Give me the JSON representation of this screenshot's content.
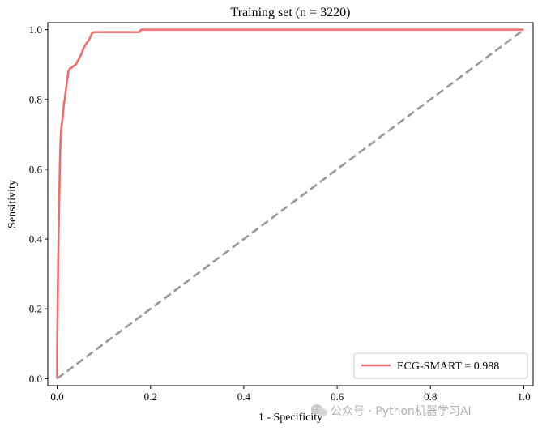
{
  "chart_data": {
    "type": "line",
    "title": "Training set (n = 3220)",
    "xlabel": "1 - Specificity",
    "ylabel": "Sensitivity",
    "xlim": [
      -0.02,
      1.02
    ],
    "ylim": [
      -0.02,
      1.02
    ],
    "xticks": [
      "0.0",
      "0.2",
      "0.4",
      "0.6",
      "0.8",
      "1.0"
    ],
    "xtick_values": [
      0.0,
      0.2,
      0.4,
      0.6,
      0.8,
      1.0
    ],
    "yticks": [
      "0.0",
      "0.2",
      "0.4",
      "0.6",
      "0.8",
      "1.0"
    ],
    "ytick_values": [
      0.0,
      0.2,
      0.4,
      0.6,
      0.8,
      1.0
    ],
    "grid": false,
    "legend_position": "lower-right",
    "series": [
      {
        "name": "ECG-SMART = 0.988",
        "color": "#f56b6b",
        "style": "solid",
        "x": [
          0.0,
          0.0,
          0.001,
          0.002,
          0.003,
          0.004,
          0.005,
          0.006,
          0.007,
          0.008,
          0.009,
          0.01,
          0.012,
          0.014,
          0.016,
          0.018,
          0.02,
          0.022,
          0.024,
          0.026,
          0.028,
          0.03,
          0.033,
          0.036,
          0.04,
          0.044,
          0.048,
          0.052,
          0.056,
          0.06,
          0.065,
          0.07,
          0.075,
          0.08,
          0.09,
          0.11,
          0.14,
          0.176,
          0.18,
          0.3,
          0.5,
          0.7,
          0.9,
          1.0
        ],
        "y": [
          0.0,
          0.08,
          0.2,
          0.32,
          0.4,
          0.48,
          0.55,
          0.62,
          0.67,
          0.7,
          0.72,
          0.73,
          0.75,
          0.78,
          0.8,
          0.82,
          0.84,
          0.86,
          0.88,
          0.885,
          0.89,
          0.89,
          0.893,
          0.897,
          0.9,
          0.91,
          0.92,
          0.93,
          0.945,
          0.955,
          0.965,
          0.975,
          0.99,
          0.993,
          0.993,
          0.993,
          0.993,
          0.993,
          1.0,
          1.0,
          1.0,
          1.0,
          1.0,
          1.0
        ]
      },
      {
        "name": "",
        "color": "#999999",
        "style": "dashed",
        "x": [
          0.0,
          1.0
        ],
        "y": [
          0.0,
          1.0
        ]
      }
    ]
  },
  "watermark": {
    "icon": "wechat-icon",
    "text": "公众号 · Python机器学习AI"
  }
}
